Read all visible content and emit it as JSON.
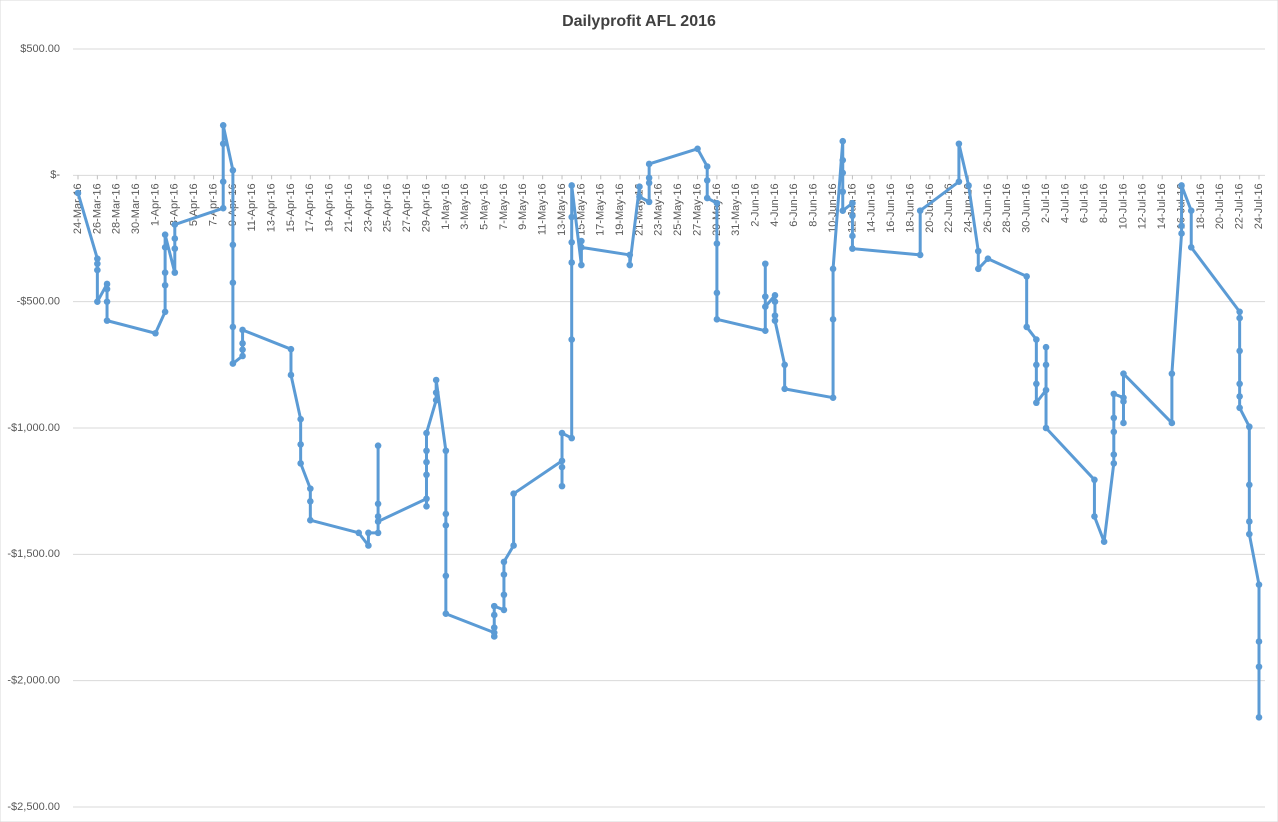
{
  "chart_data": {
    "type": "line",
    "title": "Dailyprofit AFL 2016",
    "color": "#5b9bd5",
    "grid": true,
    "x": [
      "2016-03-24",
      "2016-03-26",
      "2016-03-26",
      "2016-03-26",
      "2016-03-26",
      "2016-03-27",
      "2016-03-27",
      "2016-03-27",
      "2016-03-27",
      "2016-04-01",
      "2016-04-02",
      "2016-04-02",
      "2016-04-02",
      "2016-04-02",
      "2016-04-02",
      "2016-04-03",
      "2016-04-03",
      "2016-04-03",
      "2016-04-03",
      "2016-04-08",
      "2016-04-08",
      "2016-04-08",
      "2016-04-08",
      "2016-04-09",
      "2016-04-09",
      "2016-04-09",
      "2016-04-09",
      "2016-04-09",
      "2016-04-10",
      "2016-04-10",
      "2016-04-10",
      "2016-04-10",
      "2016-04-15",
      "2016-04-15",
      "2016-04-16",
      "2016-04-16",
      "2016-04-16",
      "2016-04-17",
      "2016-04-17",
      "2016-04-17",
      "2016-04-22",
      "2016-04-23",
      "2016-04-23",
      "2016-04-24",
      "2016-04-24",
      "2016-04-24",
      "2016-04-24",
      "2016-04-24",
      "2016-04-29",
      "2016-04-29",
      "2016-04-29",
      "2016-04-29",
      "2016-04-29",
      "2016-04-29",
      "2016-04-30",
      "2016-04-30",
      "2016-04-30",
      "2016-05-01",
      "2016-05-01",
      "2016-05-01",
      "2016-05-01",
      "2016-05-01",
      "2016-05-06",
      "2016-05-06",
      "2016-05-06",
      "2016-05-06",
      "2016-05-06",
      "2016-05-07",
      "2016-05-07",
      "2016-05-07",
      "2016-05-07",
      "2016-05-08",
      "2016-05-08",
      "2016-05-13",
      "2016-05-13",
      "2016-05-13",
      "2016-05-13",
      "2016-05-14",
      "2016-05-14",
      "2016-05-14",
      "2016-05-14",
      "2016-05-14",
      "2016-05-14",
      "2016-05-15",
      "2016-05-15",
      "2016-05-15",
      "2016-05-20",
      "2016-05-20",
      "2016-05-21",
      "2016-05-21",
      "2016-05-22",
      "2016-05-22",
      "2016-05-22",
      "2016-05-22",
      "2016-05-27",
      "2016-05-28",
      "2016-05-28",
      "2016-05-28",
      "2016-05-29",
      "2016-05-29",
      "2016-05-29",
      "2016-05-29",
      "2016-06-03",
      "2016-06-03",
      "2016-06-03",
      "2016-06-03",
      "2016-06-04",
      "2016-06-04",
      "2016-06-04",
      "2016-06-04",
      "2016-06-05",
      "2016-06-05",
      "2016-06-10",
      "2016-06-10",
      "2016-06-10",
      "2016-06-11",
      "2016-06-11",
      "2016-06-11",
      "2016-06-11",
      "2016-06-11",
      "2016-06-12",
      "2016-06-12",
      "2016-06-12",
      "2016-06-12",
      "2016-06-19",
      "2016-06-19",
      "2016-06-23",
      "2016-06-23",
      "2016-06-24",
      "2016-06-25",
      "2016-06-25",
      "2016-06-26",
      "2016-06-30",
      "2016-06-30",
      "2016-07-01",
      "2016-07-01",
      "2016-07-01",
      "2016-07-01",
      "2016-07-02",
      "2016-07-02",
      "2016-07-02",
      "2016-07-02",
      "2016-07-07",
      "2016-07-07",
      "2016-07-08",
      "2016-07-09",
      "2016-07-09",
      "2016-07-09",
      "2016-07-09",
      "2016-07-09",
      "2016-07-10",
      "2016-07-10",
      "2016-07-10",
      "2016-07-10",
      "2016-07-15",
      "2016-07-15",
      "2016-07-16",
      "2016-07-16",
      "2016-07-16",
      "2016-07-17",
      "2016-07-17",
      "2016-07-22",
      "2016-07-22",
      "2016-07-22",
      "2016-07-22",
      "2016-07-22",
      "2016-07-22",
      "2016-07-23",
      "2016-07-23",
      "2016-07-23",
      "2016-07-23",
      "2016-07-24",
      "2016-07-24",
      "2016-07-24",
      "2016-07-24"
    ],
    "values": [
      -70,
      -330,
      -350,
      -375,
      -500,
      -430,
      -450,
      -500,
      -575,
      -625,
      -540,
      -435,
      -385,
      -285,
      -235,
      -385,
      -290,
      -250,
      -195,
      -130,
      -25,
      125,
      198,
      20,
      -275,
      -425,
      -600,
      -745,
      -715,
      -690,
      -665,
      -612,
      -688,
      -790,
      -965,
      -1065,
      -1140,
      -1240,
      -1290,
      -1365,
      -1415,
      -1465,
      -1415,
      -1415,
      -1070,
      -1300,
      -1350,
      -1370,
      -1280,
      -1310,
      -1185,
      -1135,
      -1090,
      -1020,
      -890,
      -860,
      -810,
      -1090,
      -1340,
      -1385,
      -1585,
      -1735,
      -1810,
      -1825,
      -1790,
      -1740,
      -1705,
      -1720,
      -1660,
      -1580,
      -1530,
      -1465,
      -1260,
      -1130,
      -1155,
      -1230,
      -1020,
      -1040,
      -650,
      -345,
      -265,
      -165,
      -40,
      -355,
      -260,
      -285,
      -315,
      -355,
      -45,
      -85,
      -105,
      -30,
      -10,
      45,
      105,
      35,
      -20,
      -90,
      -110,
      -270,
      -465,
      -570,
      -615,
      -350,
      -480,
      -520,
      -475,
      -500,
      -555,
      -575,
      -750,
      -845,
      -880,
      -570,
      -370,
      135,
      60,
      10,
      -65,
      -140,
      -110,
      -160,
      -240,
      -290,
      -315,
      -140,
      -25,
      125,
      -40,
      -300,
      -370,
      -330,
      -400,
      -600,
      -650,
      -750,
      -825,
      -900,
      -850,
      -750,
      -680,
      -1000,
      -1205,
      -1350,
      -1450,
      -1140,
      -1105,
      -1015,
      -960,
      -865,
      -880,
      -895,
      -980,
      -785,
      -980,
      -785,
      -230,
      -200,
      -40,
      -140,
      -285,
      -540,
      -565,
      -695,
      -825,
      -875,
      -920,
      -995,
      -1225,
      -1370,
      -1420,
      -1620,
      -1845,
      -1945,
      -2145
    ],
    "xlim": [
      "2016-03-24",
      "2016-07-24"
    ],
    "xticks": [
      {
        "value": "2016-03-24",
        "label": "24-Mar-16"
      },
      {
        "value": "2016-03-26",
        "label": "26-Mar-16"
      },
      {
        "value": "2016-03-28",
        "label": "28-Mar-16"
      },
      {
        "value": "2016-03-30",
        "label": "30-Mar-16"
      },
      {
        "value": "2016-04-01",
        "label": "1-Apr-16"
      },
      {
        "value": "2016-04-03",
        "label": "3-Apr-16"
      },
      {
        "value": "2016-04-05",
        "label": "5-Apr-16"
      },
      {
        "value": "2016-04-07",
        "label": "7-Apr-16"
      },
      {
        "value": "2016-04-09",
        "label": "9-Apr-16"
      },
      {
        "value": "2016-04-11",
        "label": "11-Apr-16"
      },
      {
        "value": "2016-04-13",
        "label": "13-Apr-16"
      },
      {
        "value": "2016-04-15",
        "label": "15-Apr-16"
      },
      {
        "value": "2016-04-17",
        "label": "17-Apr-16"
      },
      {
        "value": "2016-04-19",
        "label": "19-Apr-16"
      },
      {
        "value": "2016-04-21",
        "label": "21-Apr-16"
      },
      {
        "value": "2016-04-23",
        "label": "23-Apr-16"
      },
      {
        "value": "2016-04-25",
        "label": "25-Apr-16"
      },
      {
        "value": "2016-04-27",
        "label": "27-Apr-16"
      },
      {
        "value": "2016-04-29",
        "label": "29-Apr-16"
      },
      {
        "value": "2016-05-01",
        "label": "1-May-16"
      },
      {
        "value": "2016-05-03",
        "label": "3-May-16"
      },
      {
        "value": "2016-05-05",
        "label": "5-May-16"
      },
      {
        "value": "2016-05-07",
        "label": "7-May-16"
      },
      {
        "value": "2016-05-09",
        "label": "9-May-16"
      },
      {
        "value": "2016-05-11",
        "label": "11-May-16"
      },
      {
        "value": "2016-05-13",
        "label": "13-May-16"
      },
      {
        "value": "2016-05-15",
        "label": "15-May-16"
      },
      {
        "value": "2016-05-17",
        "label": "17-May-16"
      },
      {
        "value": "2016-05-19",
        "label": "19-May-16"
      },
      {
        "value": "2016-05-21",
        "label": "21-May-16"
      },
      {
        "value": "2016-05-23",
        "label": "23-May-16"
      },
      {
        "value": "2016-05-25",
        "label": "25-May-16"
      },
      {
        "value": "2016-05-27",
        "label": "27-May-16"
      },
      {
        "value": "2016-05-29",
        "label": "29-May-16"
      },
      {
        "value": "2016-05-31",
        "label": "31-May-16"
      },
      {
        "value": "2016-06-02",
        "label": "2-Jun-16"
      },
      {
        "value": "2016-06-04",
        "label": "4-Jun-16"
      },
      {
        "value": "2016-06-06",
        "label": "6-Jun-16"
      },
      {
        "value": "2016-06-08",
        "label": "8-Jun-16"
      },
      {
        "value": "2016-06-10",
        "label": "10-Jun-16"
      },
      {
        "value": "2016-06-12",
        "label": "12-Jun-16"
      },
      {
        "value": "2016-06-14",
        "label": "14-Jun-16"
      },
      {
        "value": "2016-06-16",
        "label": "16-Jun-16"
      },
      {
        "value": "2016-06-18",
        "label": "18-Jun-16"
      },
      {
        "value": "2016-06-20",
        "label": "20-Jun-16"
      },
      {
        "value": "2016-06-22",
        "label": "22-Jun-16"
      },
      {
        "value": "2016-06-24",
        "label": "24-Jun-16"
      },
      {
        "value": "2016-06-26",
        "label": "26-Jun-16"
      },
      {
        "value": "2016-06-28",
        "label": "28-Jun-16"
      },
      {
        "value": "2016-06-30",
        "label": "30-Jun-16"
      },
      {
        "value": "2016-07-02",
        "label": "2-Jul-16"
      },
      {
        "value": "2016-07-04",
        "label": "4-Jul-16"
      },
      {
        "value": "2016-07-06",
        "label": "6-Jul-16"
      },
      {
        "value": "2016-07-08",
        "label": "8-Jul-16"
      },
      {
        "value": "2016-07-10",
        "label": "10-Jul-16"
      },
      {
        "value": "2016-07-12",
        "label": "12-Jul-16"
      },
      {
        "value": "2016-07-14",
        "label": "14-Jul-16"
      },
      {
        "value": "2016-07-16",
        "label": "16-Jul-16"
      },
      {
        "value": "2016-07-18",
        "label": "18-Jul-16"
      },
      {
        "value": "2016-07-20",
        "label": "20-Jul-16"
      },
      {
        "value": "2016-07-22",
        "label": "22-Jul-16"
      },
      {
        "value": "2016-07-24",
        "label": "24-Jul-16"
      }
    ],
    "ylim": [
      -2500,
      500
    ],
    "yticks": [
      {
        "value": 500,
        "label": "$500.00"
      },
      {
        "value": 0,
        "label": "$-"
      },
      {
        "value": -500,
        "label": "-$500.00"
      },
      {
        "value": -1000,
        "label": "-$1,000.00"
      },
      {
        "value": -1500,
        "label": "-$1,500.00"
      },
      {
        "value": -2000,
        "label": "-$2,000.00"
      },
      {
        "value": -2500,
        "label": "-$2,500.00"
      }
    ]
  }
}
